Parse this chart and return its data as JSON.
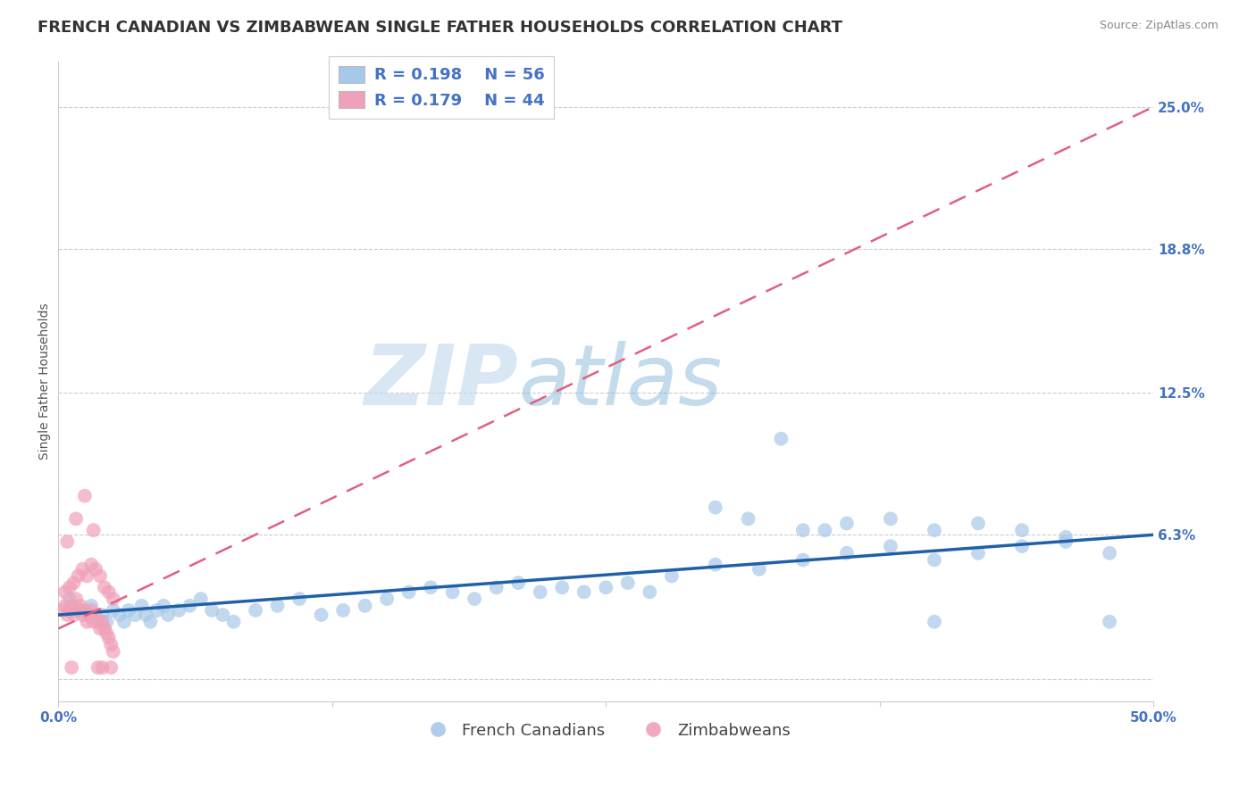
{
  "title": "FRENCH CANADIAN VS ZIMBABWEAN SINGLE FATHER HOUSEHOLDS CORRELATION CHART",
  "source": "Source: ZipAtlas.com",
  "ylabel": "Single Father Households",
  "x_ticks": [
    0.0,
    0.125,
    0.25,
    0.375,
    0.5
  ],
  "y_ticks_right": [
    0.25,
    0.188,
    0.125,
    0.063,
    0.0
  ],
  "y_tick_labels_right": [
    "25.0%",
    "18.8%",
    "12.5%",
    "6.3%",
    ""
  ],
  "xlim": [
    0.0,
    0.5
  ],
  "ylim": [
    -0.01,
    0.27
  ],
  "legend_label_blue": "R = 0.198    N = 56",
  "legend_label_pink": "R = 0.179    N = 44",
  "legend_footer_blue": "French Canadians",
  "legend_footer_pink": "Zimbabweans",
  "color_blue": "#a8c8e8",
  "color_pink": "#f0a0b8",
  "color_blue_line": "#2060a8",
  "color_pink_line": "#e06080",
  "color_label": "#4472c4",
  "watermark_zip": "ZIP",
  "watermark_atlas": "atlas",
  "background_color": "#ffffff",
  "grid_color": "#cccccc",
  "blue_scatter_x": [
    0.005,
    0.01,
    0.015,
    0.02,
    0.022,
    0.025,
    0.028,
    0.03,
    0.032,
    0.035,
    0.038,
    0.04,
    0.042,
    0.045,
    0.048,
    0.05,
    0.055,
    0.06,
    0.065,
    0.07,
    0.075,
    0.08,
    0.09,
    0.1,
    0.11,
    0.12,
    0.13,
    0.14,
    0.15,
    0.16,
    0.17,
    0.18,
    0.19,
    0.2,
    0.21,
    0.22,
    0.23,
    0.24,
    0.25,
    0.26,
    0.27,
    0.28,
    0.3,
    0.32,
    0.34,
    0.36,
    0.38,
    0.4,
    0.42,
    0.44,
    0.46,
    0.48,
    0.3,
    0.35,
    0.4,
    0.33
  ],
  "blue_scatter_y": [
    0.035,
    0.03,
    0.032,
    0.028,
    0.025,
    0.03,
    0.028,
    0.025,
    0.03,
    0.028,
    0.032,
    0.028,
    0.025,
    0.03,
    0.032,
    0.028,
    0.03,
    0.032,
    0.035,
    0.03,
    0.028,
    0.025,
    0.03,
    0.032,
    0.035,
    0.028,
    0.03,
    0.032,
    0.035,
    0.038,
    0.04,
    0.038,
    0.035,
    0.04,
    0.042,
    0.038,
    0.04,
    0.038,
    0.04,
    0.042,
    0.038,
    0.045,
    0.05,
    0.048,
    0.052,
    0.055,
    0.058,
    0.052,
    0.055,
    0.058,
    0.06,
    0.055,
    0.075,
    0.065,
    0.025,
    0.105
  ],
  "blue_scatter_extra_x": [
    0.315,
    0.34,
    0.36,
    0.38,
    0.4,
    0.42,
    0.44,
    0.46,
    0.48
  ],
  "blue_scatter_extra_y": [
    0.07,
    0.065,
    0.068,
    0.07,
    0.065,
    0.068,
    0.065,
    0.062,
    0.025
  ],
  "pink_scatter_x": [
    0.002,
    0.003,
    0.004,
    0.005,
    0.006,
    0.007,
    0.008,
    0.009,
    0.01,
    0.011,
    0.012,
    0.013,
    0.014,
    0.015,
    0.016,
    0.017,
    0.018,
    0.019,
    0.02,
    0.021,
    0.022,
    0.023,
    0.024,
    0.025,
    0.003,
    0.005,
    0.007,
    0.009,
    0.011,
    0.013,
    0.015,
    0.017,
    0.019,
    0.021,
    0.023,
    0.025,
    0.004,
    0.008,
    0.012,
    0.016,
    0.02,
    0.024,
    0.006,
    0.018
  ],
  "pink_scatter_y": [
    0.03,
    0.032,
    0.028,
    0.03,
    0.032,
    0.028,
    0.035,
    0.03,
    0.032,
    0.028,
    0.03,
    0.025,
    0.028,
    0.03,
    0.025,
    0.028,
    0.025,
    0.022,
    0.025,
    0.022,
    0.02,
    0.018,
    0.015,
    0.012,
    0.038,
    0.04,
    0.042,
    0.045,
    0.048,
    0.045,
    0.05,
    0.048,
    0.045,
    0.04,
    0.038,
    0.035,
    0.06,
    0.07,
    0.08,
    0.065,
    0.005,
    0.005,
    0.005,
    0.005
  ],
  "title_fontsize": 13,
  "axis_label_fontsize": 10,
  "tick_fontsize": 11,
  "legend_fontsize": 13
}
